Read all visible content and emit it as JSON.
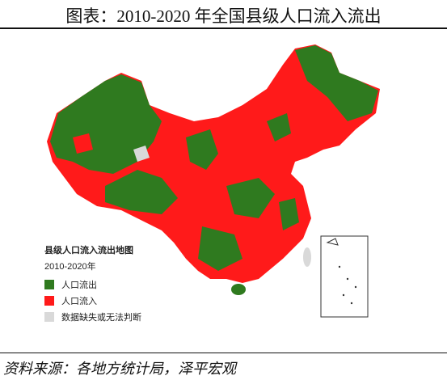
{
  "title": "图表：2010-2020 年全国县级人口流入流出",
  "legend": {
    "title": "县级人口流入流出地图",
    "subtitle": "2010-2020年",
    "items": [
      {
        "label": "人口流出",
        "color": "#2f7a1f"
      },
      {
        "label": "人口流入",
        "color": "#ff1a1a"
      },
      {
        "label": "数据缺失或无法判断",
        "color": "#d9d9d9"
      }
    ]
  },
  "source": "资料来源：各地方统计局，泽平宏观"
}
